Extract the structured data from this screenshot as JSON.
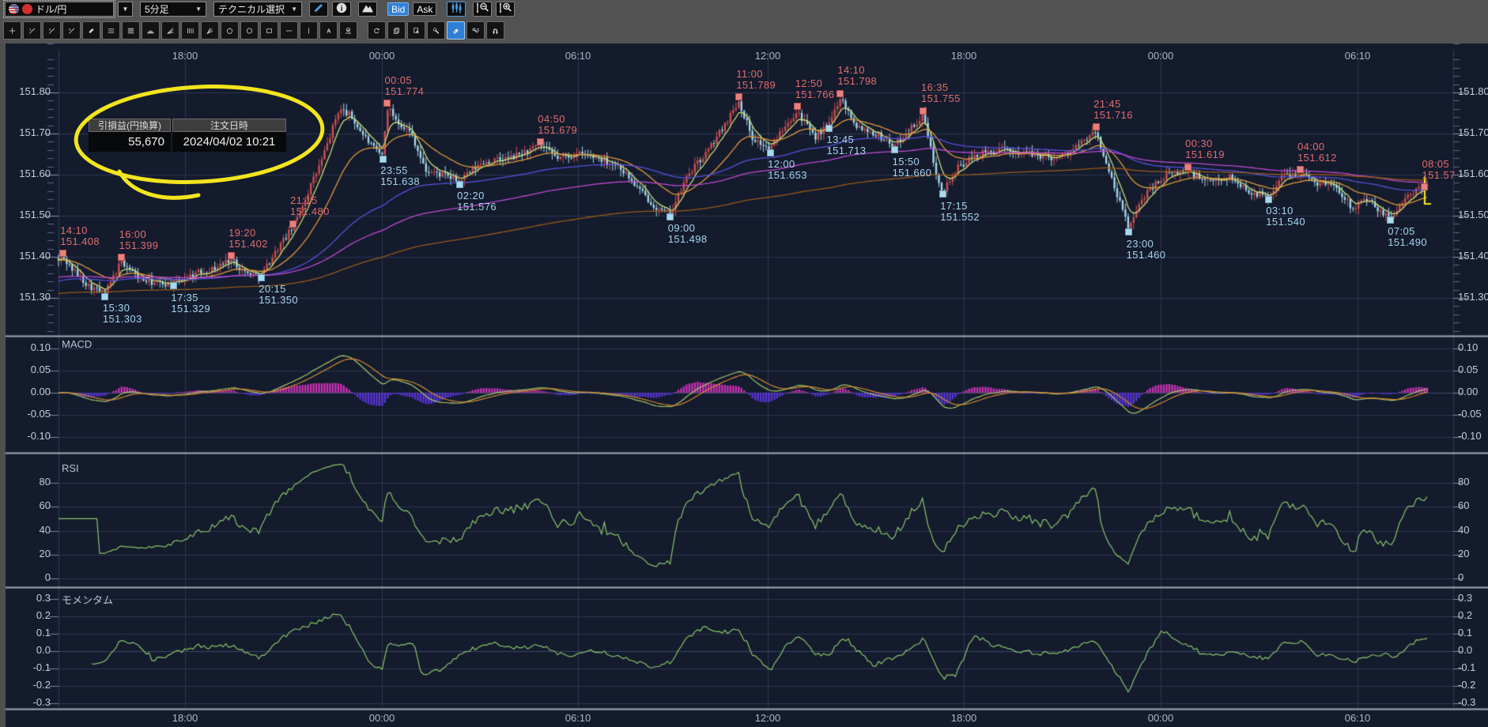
{
  "toolbar": {
    "pair_label": "ドル/円",
    "timeframe_label": "5分足",
    "technical_label": "テクニカル選択",
    "bid_label": "Bid",
    "ask_label": "Ask",
    "icon_buttons": [
      "pencil-icon",
      "info-icon",
      "mountain-icon",
      "candle-style-icon",
      "vzoom-out-icon",
      "vzoom-in-icon"
    ]
  },
  "draw_toolbar": {
    "tools": [
      {
        "name": "crosshair"
      },
      {
        "name": "trendline-1"
      },
      {
        "name": "trendline-2"
      },
      {
        "name": "trendline-3"
      },
      {
        "name": "ruler"
      },
      {
        "name": "parallel-lines"
      },
      {
        "name": "parallel-lines-4"
      },
      {
        "name": "fibonacci-arc"
      },
      {
        "name": "fan-lines"
      },
      {
        "name": "vertical-grid-lines"
      },
      {
        "name": "gann-fan"
      },
      {
        "name": "pentagon"
      },
      {
        "name": "ellipse"
      },
      {
        "name": "rectangle"
      },
      {
        "name": "horizontal-line"
      },
      {
        "name": "vertical-line"
      },
      {
        "name": "text-label"
      },
      {
        "name": "icon-stamp"
      },
      {
        "name": "history-undo",
        "group2": true
      },
      {
        "name": "copy-object"
      },
      {
        "name": "select-object"
      },
      {
        "name": "settings-wrench"
      },
      {
        "name": "eraser",
        "active": true
      },
      {
        "name": "indicator-settings"
      },
      {
        "name": "magnet-snap"
      }
    ]
  },
  "tooltip": {
    "pl_header": "引損益(円換算)",
    "datetime_header": "注文日時",
    "pl_value": "55,670",
    "datetime_value": "2024/04/02 10:21"
  },
  "chart_data": {
    "type": "candlestick",
    "instrument": "ドル/円",
    "timeframe": "5分足",
    "quote_side": "Bid",
    "price_axis": {
      "labels": [
        "151.80",
        "151.70",
        "151.60",
        "151.50",
        "151.40",
        "151.30"
      ],
      "visible_min": 151.22,
      "visible_max": 151.92
    },
    "time_axis": {
      "labels": [
        "18:00",
        "00:00",
        "06:10",
        "12:00",
        "18:00",
        "00:00",
        "06:10"
      ]
    },
    "panels": [
      {
        "name": "MACD",
        "ticks": [
          "0.10",
          "0.05",
          "0.00",
          "-0.05",
          "-0.10"
        ]
      },
      {
        "name": "RSI",
        "ticks": [
          "80",
          "60",
          "40",
          "20",
          "0"
        ]
      },
      {
        "name": "モメンタム",
        "ticks": [
          "0.3",
          "0.2",
          "0.1",
          "0.0",
          "-0.1",
          "-0.2",
          "-0.3"
        ]
      }
    ],
    "trade_markers": {
      "highs": [
        {
          "time": "14:10",
          "price": "151.408",
          "f": 0.003
        },
        {
          "time": "16:00",
          "price": "151.399",
          "f": 0.046
        },
        {
          "time": "19:20",
          "price": "151.402",
          "f": 0.126
        },
        {
          "time": "21:15",
          "price": "151.480",
          "f": 0.171
        },
        {
          "time": "00:05",
          "price": "151.774",
          "f": 0.24
        },
        {
          "time": "04:50",
          "price": "151.679",
          "f": 0.352
        },
        {
          "time": "11:00",
          "price": "151.789",
          "f": 0.497
        },
        {
          "time": "12:50",
          "price": "151.766",
          "f": 0.54
        },
        {
          "time": "14:10",
          "price": "151.798",
          "f": 0.571
        },
        {
          "time": "16:35",
          "price": "151.755",
          "f": 0.632
        },
        {
          "time": "21:45",
          "price": "151.716",
          "f": 0.758
        },
        {
          "time": "00:30",
          "price": "151.619",
          "f": 0.825
        },
        {
          "time": "04:00",
          "price": "151.612",
          "f": 0.907
        },
        {
          "time": "08:05",
          "price": "151.57",
          "f": 0.998
        }
      ],
      "lows": [
        {
          "time": "15:30",
          "price": "151.303",
          "f": 0.034
        },
        {
          "time": "17:35",
          "price": "151.329",
          "f": 0.084
        },
        {
          "time": "20:15",
          "price": "151.350",
          "f": 0.148
        },
        {
          "time": "23:55",
          "price": "151.638",
          "f": 0.237
        },
        {
          "time": "02:20",
          "price": "151.576",
          "f": 0.293
        },
        {
          "time": "09:00",
          "price": "151.498",
          "f": 0.447
        },
        {
          "time": "12:00",
          "price": "151.653",
          "f": 0.52
        },
        {
          "time": "13:45",
          "price": "151.713",
          "f": 0.563
        },
        {
          "time": "15:50",
          "price": "151.660",
          "f": 0.611
        },
        {
          "time": "17:15",
          "price": "151.552",
          "f": 0.646
        },
        {
          "time": "23:00",
          "price": "151.460",
          "f": 0.782
        },
        {
          "time": "03:10",
          "price": "151.540",
          "f": 0.884
        },
        {
          "time": "07:05",
          "price": "151.490",
          "f": 0.973
        }
      ]
    },
    "price_path": [
      [
        0.0,
        151.39
      ],
      [
        0.003,
        151.4
      ],
      [
        0.01,
        151.37
      ],
      [
        0.022,
        151.33
      ],
      [
        0.034,
        151.31
      ],
      [
        0.046,
        151.39
      ],
      [
        0.06,
        151.345
      ],
      [
        0.072,
        151.335
      ],
      [
        0.084,
        151.335
      ],
      [
        0.1,
        151.36
      ],
      [
        0.113,
        151.37
      ],
      [
        0.126,
        151.395
      ],
      [
        0.137,
        151.36
      ],
      [
        0.148,
        151.355
      ],
      [
        0.16,
        151.42
      ],
      [
        0.171,
        151.47
      ],
      [
        0.18,
        151.54
      ],
      [
        0.193,
        151.64
      ],
      [
        0.205,
        151.76
      ],
      [
        0.213,
        151.745
      ],
      [
        0.222,
        151.7
      ],
      [
        0.231,
        151.66
      ],
      [
        0.237,
        151.645
      ],
      [
        0.24,
        151.765
      ],
      [
        0.248,
        151.73
      ],
      [
        0.258,
        151.7
      ],
      [
        0.268,
        151.61
      ],
      [
        0.28,
        151.6
      ],
      [
        0.293,
        151.585
      ],
      [
        0.31,
        151.63
      ],
      [
        0.33,
        151.64
      ],
      [
        0.352,
        151.67
      ],
      [
        0.365,
        151.64
      ],
      [
        0.38,
        151.65
      ],
      [
        0.395,
        151.64
      ],
      [
        0.41,
        151.62
      ],
      [
        0.425,
        151.56
      ],
      [
        0.44,
        151.51
      ],
      [
        0.447,
        151.505
      ],
      [
        0.46,
        151.6
      ],
      [
        0.475,
        151.66
      ],
      [
        0.49,
        151.74
      ],
      [
        0.497,
        151.78
      ],
      [
        0.507,
        151.69
      ],
      [
        0.52,
        151.66
      ],
      [
        0.53,
        151.72
      ],
      [
        0.54,
        151.755
      ],
      [
        0.552,
        151.69
      ],
      [
        0.563,
        151.72
      ],
      [
        0.571,
        151.79
      ],
      [
        0.583,
        151.72
      ],
      [
        0.597,
        151.7
      ],
      [
        0.611,
        151.67
      ],
      [
        0.622,
        151.71
      ],
      [
        0.632,
        151.745
      ],
      [
        0.64,
        151.62
      ],
      [
        0.646,
        151.56
      ],
      [
        0.658,
        151.62
      ],
      [
        0.672,
        151.65
      ],
      [
        0.69,
        151.66
      ],
      [
        0.71,
        151.65
      ],
      [
        0.73,
        151.64
      ],
      [
        0.745,
        151.67
      ],
      [
        0.758,
        151.705
      ],
      [
        0.768,
        151.6
      ],
      [
        0.782,
        151.47
      ],
      [
        0.795,
        151.56
      ],
      [
        0.81,
        151.6
      ],
      [
        0.825,
        151.61
      ],
      [
        0.84,
        151.58
      ],
      [
        0.855,
        151.595
      ],
      [
        0.87,
        151.56
      ],
      [
        0.884,
        151.545
      ],
      [
        0.895,
        151.6
      ],
      [
        0.907,
        151.605
      ],
      [
        0.92,
        151.58
      ],
      [
        0.933,
        151.575
      ],
      [
        0.945,
        151.52
      ],
      [
        0.956,
        151.54
      ],
      [
        0.965,
        151.51
      ],
      [
        0.973,
        151.495
      ],
      [
        0.985,
        151.545
      ],
      [
        0.998,
        151.57
      ]
    ],
    "moving_averages": [
      {
        "period": 6,
        "color": "#c9dc74"
      },
      {
        "period": 24,
        "color": "#e29a3c"
      },
      {
        "period": 90,
        "color": "#5a50dc",
        "seed": 151.34
      },
      {
        "period": 160,
        "color": "#c04ad2",
        "seed": 151.35
      },
      {
        "period": 300,
        "color": "#99591a",
        "seed": 151.31
      }
    ],
    "indicators": {
      "macd": {
        "fast": 12,
        "slow": 26,
        "signal": 9,
        "line_color": "#a8c868",
        "signal_color": "#d88830",
        "hist_pos": "#c832b4",
        "hist_neg": "#5a35d8"
      },
      "rsi": {
        "period": 14,
        "color": "#8cc46a"
      },
      "momentum": {
        "period": 12,
        "color": "#8cc46a"
      }
    }
  },
  "colors": {
    "candle_up": "#d05050",
    "candle_down": "#a6d9ec",
    "marker_high": "#e8807e",
    "marker_low": "#a8d8ec",
    "annotation_yellow": "#f2e51e",
    "bid_active_blue": "#2f7fd6",
    "grid": "#2b3650",
    "axis_text": "#c6ccda"
  }
}
